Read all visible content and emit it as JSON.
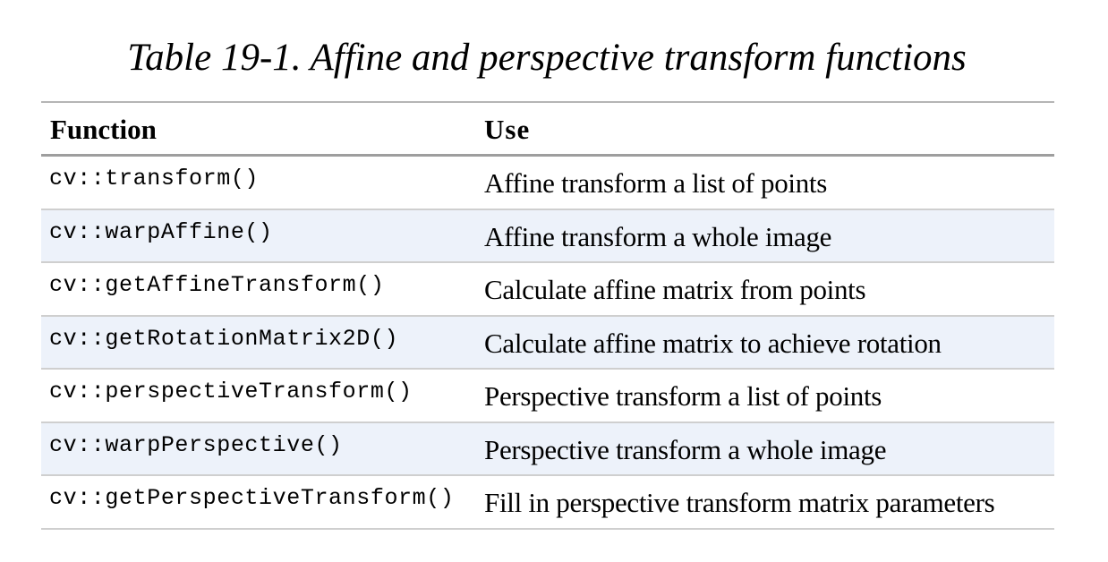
{
  "caption": "Table 19-1. Affine and perspective transform functions",
  "table": {
    "headers": [
      "Function",
      "Use"
    ],
    "rows": [
      {
        "function": "cv::transform()",
        "use": "Affine transform a list of points"
      },
      {
        "function": "cv::warpAffine()",
        "use": "Affine transform a whole image"
      },
      {
        "function": "cv::getAffineTransform()",
        "use": "Calculate affine matrix from points"
      },
      {
        "function": "cv::getRotationMatrix2D()",
        "use": "Calculate affine matrix to achieve rotation"
      },
      {
        "function": "cv::perspectiveTransform()",
        "use": "Perspective transform a list of points"
      },
      {
        "function": "cv::warpPerspective()",
        "use": "Perspective transform a whole image"
      },
      {
        "function": "cv::getPerspectiveTransform()",
        "use": "Fill in perspective transform matrix parameters"
      }
    ]
  },
  "colors": {
    "shaded_row": "#edf2fa",
    "rule": "#b5b5b5",
    "text": "#000000"
  }
}
